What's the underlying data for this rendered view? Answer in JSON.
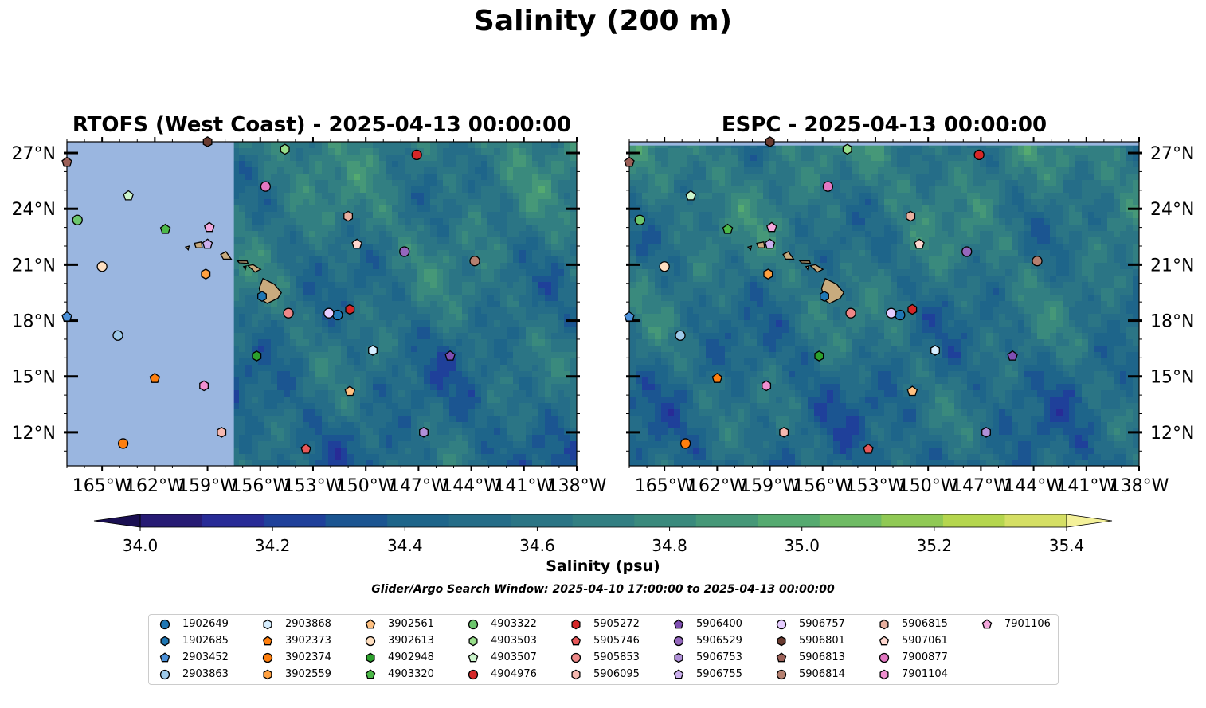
{
  "title": "Salinity (200 m)",
  "panels": [
    {
      "title": "RTOFS (West Coast) - 2025-04-13 00:00:00",
      "missing_west_of": -157.5
    },
    {
      "title": "ESPC - 2025-04-13 00:00:00",
      "missing_north_of": 27.4
    }
  ],
  "colorbar": {
    "label": "Salinity (psu)",
    "ticks": [
      "34.0",
      "34.2",
      "34.4",
      "34.6",
      "34.8",
      "35.0",
      "35.2",
      "35.4"
    ],
    "min": 34.0,
    "max": 35.4,
    "step": 0.1,
    "colors": [
      "#271b74",
      "#282b96",
      "#1f409a",
      "#1b5591",
      "#1e658a",
      "#256d88",
      "#2b7585",
      "#327f82",
      "#3a8a7d",
      "#469878",
      "#55aa70",
      "#6fbb64",
      "#90c955",
      "#b5d64e",
      "#d5df64"
    ],
    "under_color": "#1a0f52",
    "over_color": "#f4f19a"
  },
  "search_window": "Glider/Argo Search Window: 2025-04-10 17:00:00 to 2025-04-13 00:00:00",
  "chart_data": {
    "type": "map",
    "region": {
      "lon": [
        -167,
        -138
      ],
      "lat": [
        10.2,
        27.6
      ]
    },
    "x_ticks": [
      "165°W",
      "162°W",
      "159°W",
      "156°W",
      "153°W",
      "150°W",
      "147°W",
      "144°W",
      "141°W",
      "138°W"
    ],
    "x_tick_values": [
      -165,
      -162,
      -159,
      -156,
      -153,
      -150,
      -147,
      -144,
      -141,
      -138
    ],
    "y_ticks": [
      "27°N",
      "24°N",
      "21°N",
      "18°N",
      "15°N",
      "12°N"
    ],
    "y_tick_values": [
      27,
      24,
      21,
      18,
      15,
      12
    ],
    "land_color": "#c8ab7e",
    "missing_color": "#9ab6e0",
    "floats": [
      {
        "id": "1902649",
        "marker": "circle",
        "color": "#1f77b4",
        "lon": -151.6,
        "lat": 18.3
      },
      {
        "id": "1902685",
        "marker": "hexagon",
        "color": "#1f77b4",
        "lon": -155.9,
        "lat": 19.3
      },
      {
        "id": "2903452",
        "marker": "pentagon",
        "color": "#4a90d9",
        "lon": -167.0,
        "lat": 18.2
      },
      {
        "id": "2903863",
        "marker": "circle",
        "color": "#9ecae9",
        "lon": -164.1,
        "lat": 17.2
      },
      {
        "id": "2903868",
        "marker": "hexagon",
        "color": "#d6eeff",
        "lon": -149.6,
        "lat": 16.4
      },
      {
        "id": "3902373",
        "marker": "pentagon",
        "color": "#ff7f0e",
        "lon": -162.0,
        "lat": 14.9
      },
      {
        "id": "3902374",
        "marker": "circle",
        "color": "#ff7f0e",
        "lon": -163.8,
        "lat": 11.4
      },
      {
        "id": "3902559",
        "marker": "hexagon",
        "color": "#ffa040",
        "lon": -159.1,
        "lat": 20.5
      },
      {
        "id": "3902561",
        "marker": "pentagon",
        "color": "#ffc080",
        "lon": -150.9,
        "lat": 14.2
      },
      {
        "id": "3902613",
        "marker": "circle",
        "color": "#ffdfc0",
        "lon": -165.0,
        "lat": 20.9
      },
      {
        "id": "4902948",
        "marker": "hexagon",
        "color": "#2ca02c",
        "lon": -156.2,
        "lat": 16.1
      },
      {
        "id": "4903320",
        "marker": "pentagon",
        "color": "#4cb848",
        "lon": -161.4,
        "lat": 22.9
      },
      {
        "id": "4903322",
        "marker": "circle",
        "color": "#6cc66c",
        "lon": -166.4,
        "lat": 23.4
      },
      {
        "id": "4903503",
        "marker": "hexagon",
        "color": "#98df8a",
        "lon": -154.6,
        "lat": 27.2
      },
      {
        "id": "4903507",
        "marker": "pentagon",
        "color": "#ccf5cc",
        "lon": -163.5,
        "lat": 24.7
      },
      {
        "id": "4904976",
        "marker": "circle",
        "color": "#d62728",
        "lon": -147.1,
        "lat": 26.9
      },
      {
        "id": "5905272",
        "marker": "hexagon",
        "color": "#d62728",
        "lon": -150.9,
        "lat": 18.6
      },
      {
        "id": "5905746",
        "marker": "pentagon",
        "color": "#e8585a",
        "lon": -153.4,
        "lat": 11.1
      },
      {
        "id": "5905853",
        "marker": "circle",
        "color": "#ee8888",
        "lon": -154.4,
        "lat": 18.4
      },
      {
        "id": "5906095",
        "marker": "hexagon",
        "color": "#f6b8b0",
        "lon": -158.2,
        "lat": 12.0
      },
      {
        "id": "5906400",
        "marker": "pentagon",
        "color": "#7f4fb2",
        "lon": -145.2,
        "lat": 16.1
      },
      {
        "id": "5906529",
        "marker": "circle",
        "color": "#9467bd",
        "lon": -147.8,
        "lat": 21.7
      },
      {
        "id": "5906753",
        "marker": "hexagon",
        "color": "#b090d8",
        "lon": -146.7,
        "lat": 12.0
      },
      {
        "id": "5906755",
        "marker": "pentagon",
        "color": "#ccb0ee",
        "lon": -159.0,
        "lat": 22.1
      },
      {
        "id": "5906757",
        "marker": "circle",
        "color": "#e5ccff",
        "lon": -152.1,
        "lat": 18.4
      },
      {
        "id": "5906801",
        "marker": "hexagon",
        "color": "#6a3b30",
        "lon": -159.0,
        "lat": 27.6
      },
      {
        "id": "5906813",
        "marker": "pentagon",
        "color": "#9b6058",
        "lon": -167.0,
        "lat": 26.5
      },
      {
        "id": "5906814",
        "marker": "circle",
        "color": "#b58070",
        "lon": -143.8,
        "lat": 21.2
      },
      {
        "id": "5906815",
        "marker": "hexagon",
        "color": "#e8b0a0",
        "lon": -151.0,
        "lat": 23.6
      },
      {
        "id": "5907061",
        "marker": "pentagon",
        "color": "#ffd8d0",
        "lon": -150.5,
        "lat": 22.1
      },
      {
        "id": "7900877",
        "marker": "circle",
        "color": "#e377c2",
        "lon": -155.7,
        "lat": 25.2
      },
      {
        "id": "7901104",
        "marker": "hexagon",
        "color": "#f090d0",
        "lon": -159.2,
        "lat": 14.5
      },
      {
        "id": "7901106",
        "marker": "pentagon",
        "color": "#f4a8dd",
        "lon": -158.9,
        "lat": 23.0
      }
    ]
  }
}
